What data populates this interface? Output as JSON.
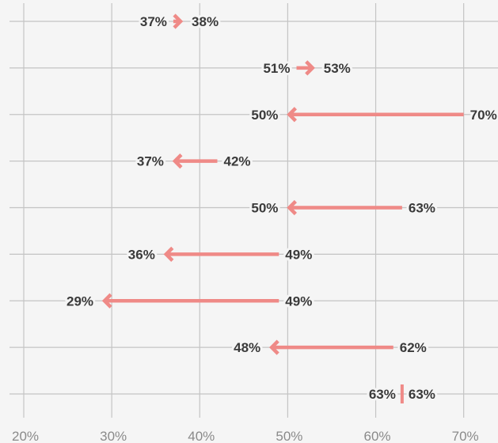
{
  "chart_data": {
    "type": "arrow-dumbbell",
    "title": "",
    "xlabel": "",
    "ylabel": "",
    "xlim": [
      17.3,
      73.9
    ],
    "x_ticks": [
      20,
      30,
      40,
      50,
      60,
      70
    ],
    "x_tick_labels": [
      "20%",
      "30%",
      "40%",
      "50%",
      "60%",
      "70%"
    ],
    "grid": true,
    "arrow_color": "#ef8a87",
    "rows": [
      {
        "from": 37,
        "to": 38,
        "from_label": "37%",
        "to_label": "38%"
      },
      {
        "from": 51,
        "to": 53,
        "from_label": "51%",
        "to_label": "53%"
      },
      {
        "from": 70,
        "to": 50,
        "from_label": "70%",
        "to_label": "50%"
      },
      {
        "from": 42,
        "to": 37,
        "from_label": "42%",
        "to_label": "37%"
      },
      {
        "from": 63,
        "to": 50,
        "from_label": "63%",
        "to_label": "50%"
      },
      {
        "from": 49,
        "to": 36,
        "from_label": "49%",
        "to_label": "36%"
      },
      {
        "from": 49,
        "to": 29,
        "from_label": "49%",
        "to_label": "29%"
      },
      {
        "from": 62,
        "to": 48,
        "from_label": "62%",
        "to_label": "48%"
      },
      {
        "from": 63,
        "to": 63,
        "from_label": "63%",
        "to_label": "63%"
      }
    ]
  }
}
